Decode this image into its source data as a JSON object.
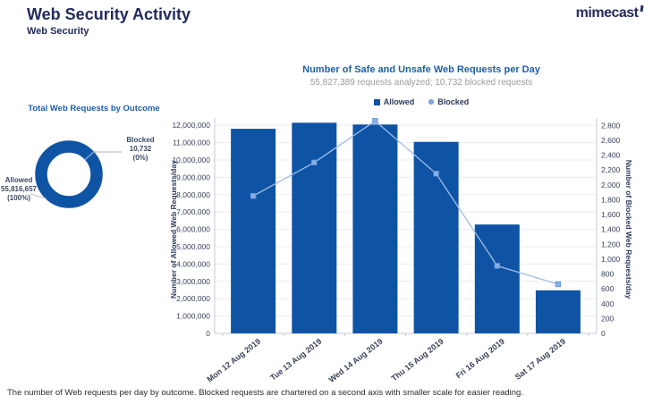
{
  "header": {
    "title": "Web Security Activity",
    "subtitle": "Web Security",
    "logo": "mimecast"
  },
  "colors": {
    "bar_blue": "#0F54A4",
    "line_blue": "#9FBCE9",
    "marker_blue": "#8AB0E6",
    "marker_border": "#5E93DC",
    "title_blue": "#1D5FA8",
    "navy_text": "#232A5C",
    "tick_text": "#3A4158",
    "subtitle_gray": "#9B9B9B",
    "gridline": "#ECECF2",
    "axis_line": "#C5C9D4",
    "leader_gray": "#B3B3B3"
  },
  "donut": {
    "title": "Total Web Requests by Outcome",
    "allowed": {
      "label": "Allowed",
      "value": 55816657,
      "value_label": "55,816,657",
      "pct_label": "(100%)",
      "color": "#0F54A4"
    },
    "blocked": {
      "label": "Blocked",
      "value": 10732,
      "value_label": "10,732 (0%)",
      "color": "#7FA8DC"
    }
  },
  "chart_data": {
    "type": "bar",
    "title": "Number of Safe and Unsafe Web Requests per Day",
    "subtitle": "55,827,389 requests analyzed; 10,732 blocked requests",
    "categories": [
      "Mon 12 Aug 2019",
      "Tue 13 Aug 2019",
      "Wed 14 Aug 2019",
      "Thu 15 Aug 2019",
      "Fri 16 Aug 2019",
      "Sat 17 Aug 2019"
    ],
    "series": [
      {
        "name": "Allowed",
        "render": "bar",
        "axis": "left",
        "values": [
          11800000,
          12150000,
          12050000,
          11050000,
          6280000,
          2486657
        ],
        "color": "#0F54A4"
      },
      {
        "name": "Blocked",
        "render": "line",
        "axis": "right",
        "values": [
          1850,
          2300,
          2860,
          2150,
          910,
          662
        ],
        "color": "#8AB0E6"
      }
    ],
    "ylabel_left": "Number of Allowed Web Requests/day",
    "ylabel_right": "Number of Blocked Web Requests/day",
    "ylim_left": [
      0,
      12000000
    ],
    "ytick_step_left": 1000000,
    "ylim_right": [
      0,
      2800
    ],
    "ytick_step_right": 200,
    "grid": true,
    "legend_position": "top"
  },
  "footer": {
    "caption": "The number of Web requests per day by outcome. Blocked requests are chartered on a second axis with smaller scale for easier reading."
  }
}
